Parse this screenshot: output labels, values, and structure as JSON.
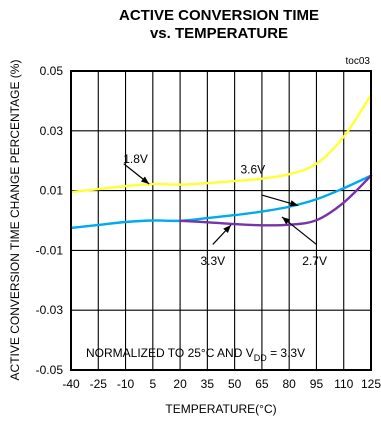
{
  "chart_data": {
    "type": "line",
    "title": [
      "ACTIVE CONVERSION TIME",
      "vs. TEMPERATURE"
    ],
    "figure_id": "toc03",
    "xlabel": "TEMPERATURE(°C)",
    "ylabel": "ACTIVE CONVERSION TIME CHANGE PERCENTAGE (%)",
    "xlim": [
      -40,
      125
    ],
    "ylim": [
      -0.05,
      0.05
    ],
    "x_ticks": [
      "-40",
      "-25",
      "-10",
      "5",
      "20",
      "35",
      "50",
      "65",
      "80",
      "95",
      "110",
      "125"
    ],
    "y_ticks": [
      "-0.05",
      "-0.03",
      "-0.01",
      "0.01",
      "0.03",
      "0.05"
    ],
    "grid": true,
    "note": {
      "prefix": "NORMALIZED TO 25°C AND V",
      "subscript": "DD",
      "suffix": " = 3.3V"
    },
    "series": [
      {
        "name": "1.8V",
        "color": "#ffff33",
        "x": [
          -40,
          -25,
          -10,
          5,
          20,
          35,
          50,
          65,
          80,
          95,
          110,
          125
        ],
        "y": [
          0.0095,
          0.0105,
          0.0115,
          0.0122,
          0.012,
          0.0125,
          0.0132,
          0.014,
          0.0155,
          0.019,
          0.028,
          0.042
        ]
      },
      {
        "name": "3.3V",
        "color": "#00aaee",
        "x": [
          -40,
          -25,
          -10,
          5,
          20,
          35,
          50,
          65,
          80,
          95,
          110,
          125
        ],
        "y": [
          -0.0025,
          -0.0015,
          -0.0005,
          0.0,
          -0.0001,
          0.0008,
          0.0018,
          0.003,
          0.0046,
          0.0071,
          0.0108,
          0.015
        ]
      },
      {
        "name": "2.7V",
        "color": "#7733aa",
        "x": [
          20,
          35,
          50,
          65,
          80,
          95,
          110,
          125
        ],
        "y": [
          -0.0001,
          -0.0006,
          -0.0012,
          -0.0016,
          -0.0014,
          0.0001,
          0.006,
          0.015
        ]
      }
    ],
    "annotations": [
      {
        "label": "1.8V",
        "series": "1.8V",
        "text_at": [
          -4.5,
          0.0205
        ],
        "arrow_from": [
          -11,
          0.019
        ],
        "arrow_to": [
          3,
          0.0122
        ]
      },
      {
        "label": "3.6V",
        "series": "3.6V",
        "text_at": [
          60,
          0.017
        ],
        "arrow_from": [
          65,
          0.0085
        ],
        "arrow_to": [
          85,
          0.005
        ]
      },
      {
        "label": "3.3V",
        "series": "3.3V",
        "text_at": [
          38,
          -0.0135
        ],
        "arrow_from": [
          38,
          -0.008
        ],
        "arrow_to": [
          48,
          -0.0015
        ]
      },
      {
        "label": "2.7V",
        "series": "2.7V",
        "text_at": [
          94,
          -0.0135
        ],
        "arrow_from": [
          95,
          -0.008
        ],
        "arrow_to": [
          76,
          0.0012
        ]
      }
    ]
  }
}
